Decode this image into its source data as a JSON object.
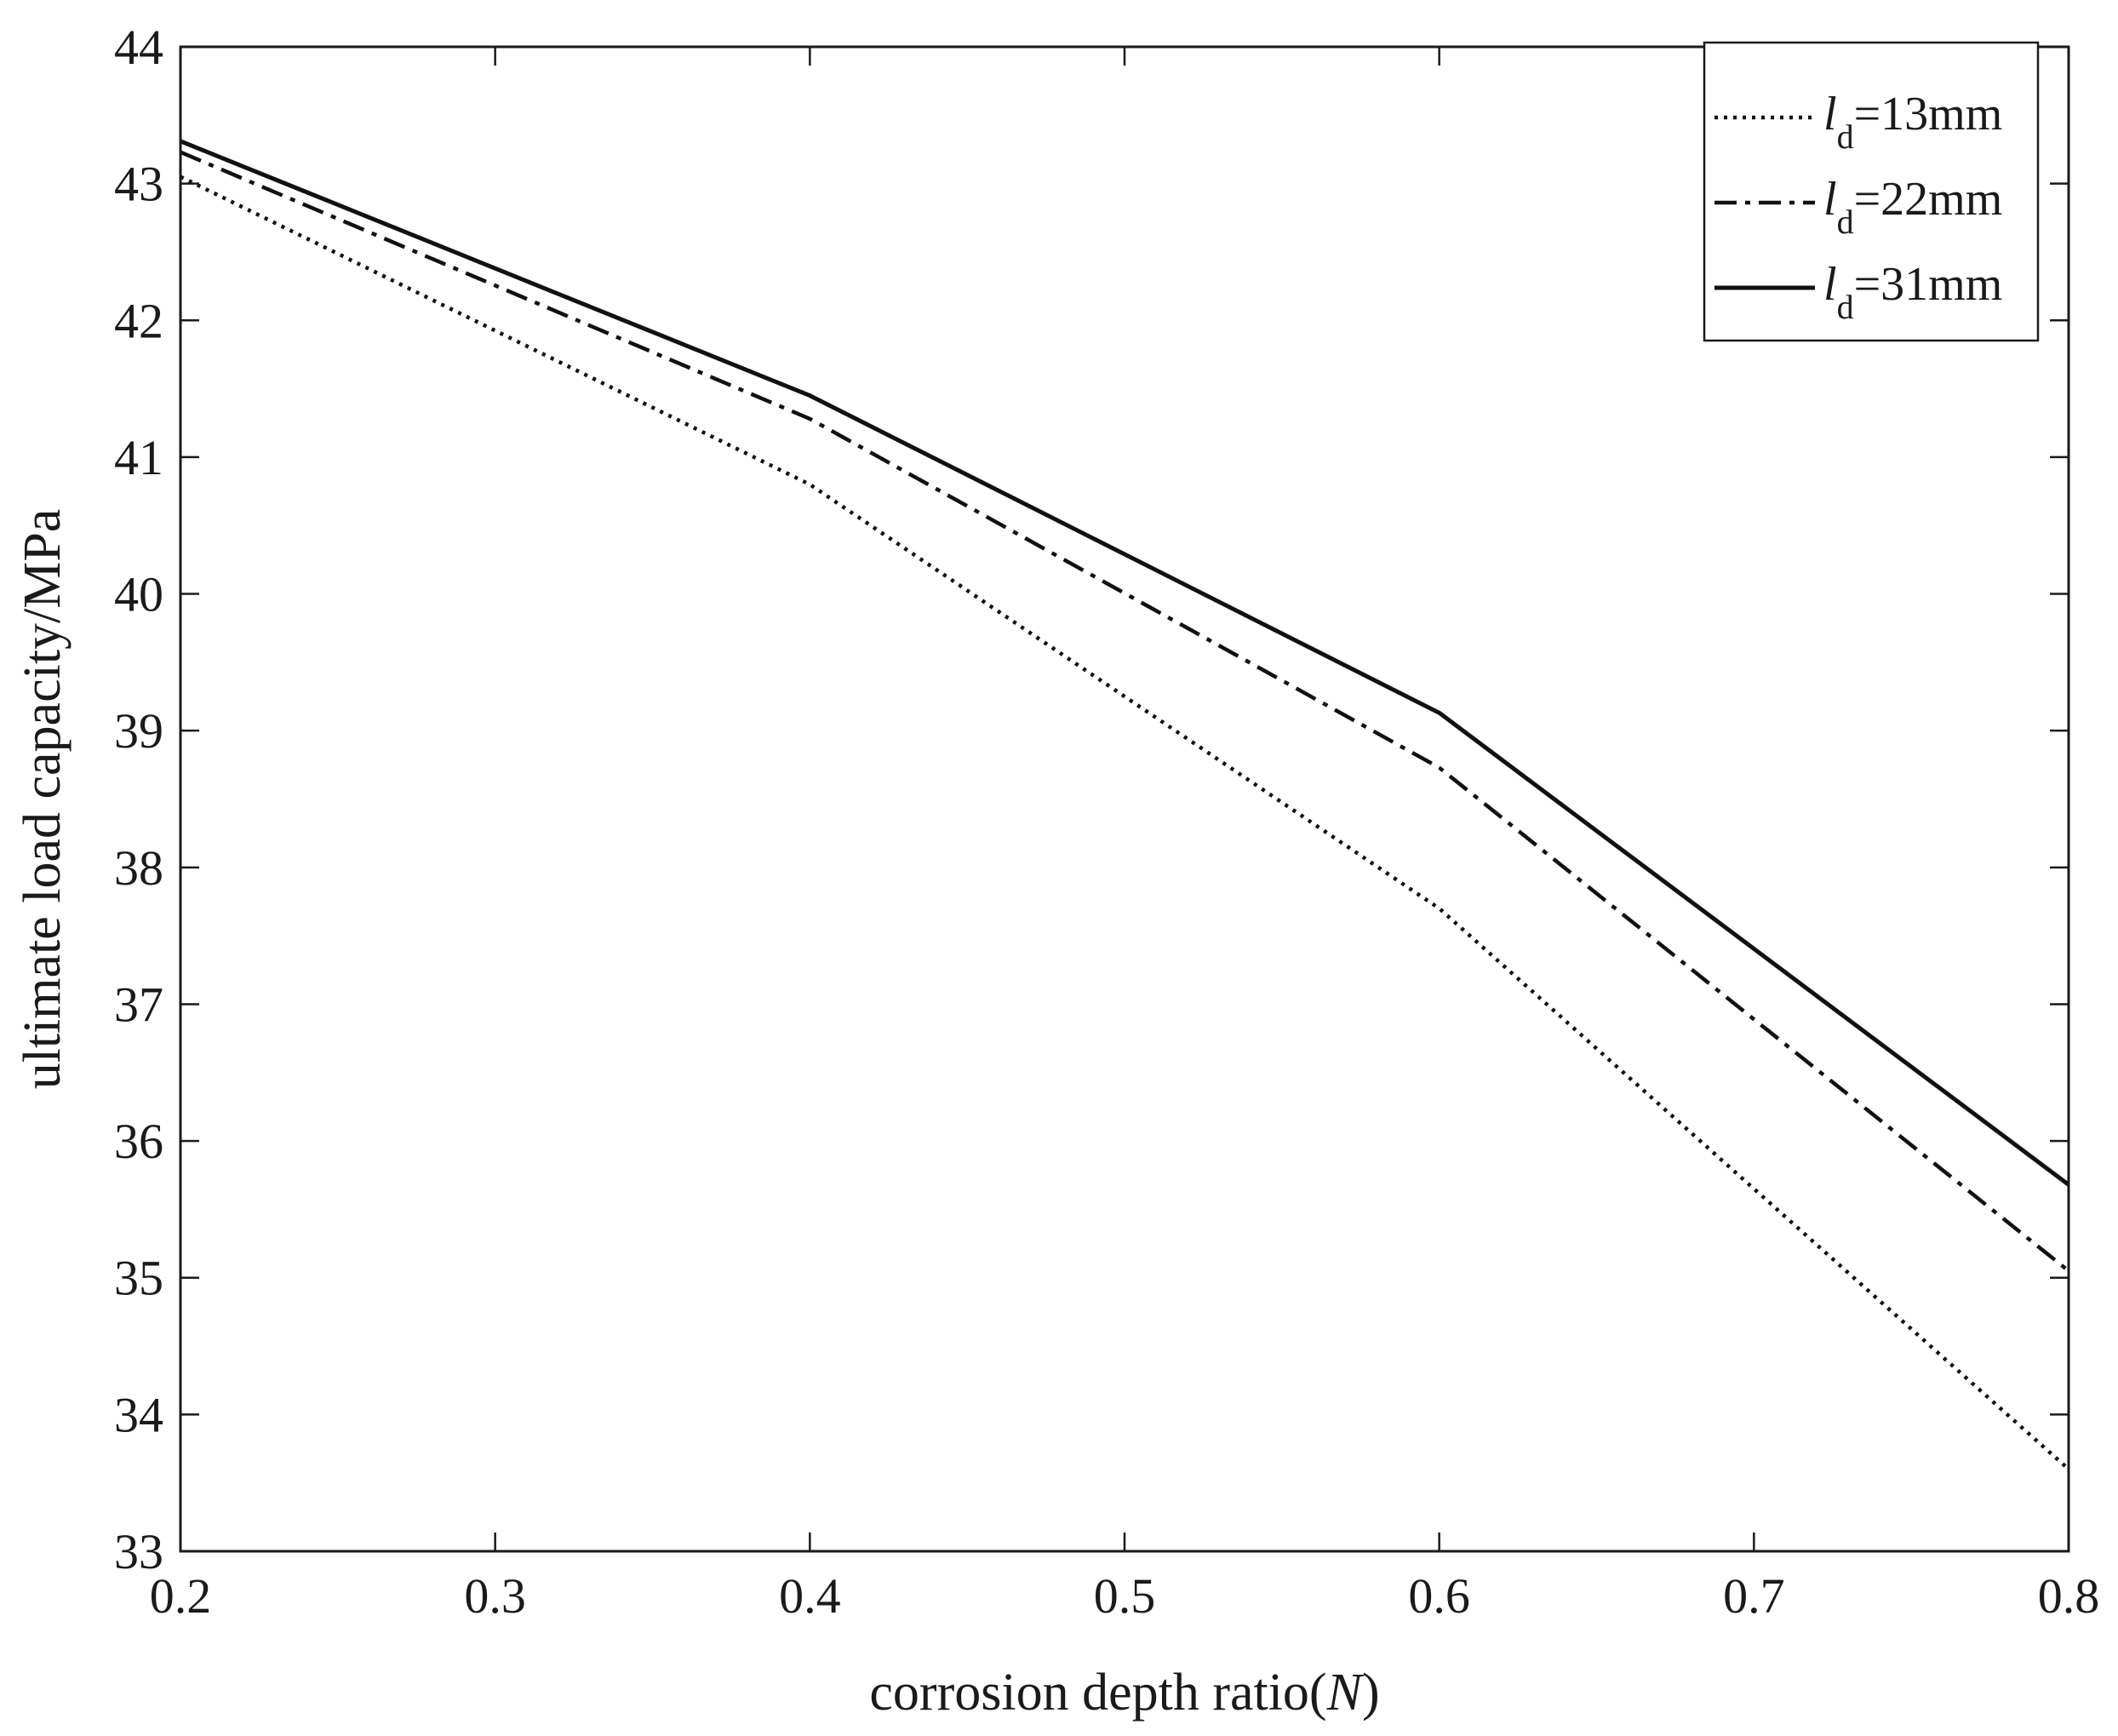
{
  "chart_data": {
    "type": "line",
    "xlabel_main": "corrosion depth ratio(",
    "xlabel_var": "N",
    "xlabel_end": ")",
    "ylabel": "ultimate load capacity/MPa",
    "xlim": [
      0.2,
      0.8
    ],
    "ylim": [
      33,
      44
    ],
    "x_ticks": [
      "0.2",
      "0.3",
      "0.4",
      "0.5",
      "0.6",
      "0.7",
      "0.8"
    ],
    "y_ticks": [
      "33",
      "34",
      "35",
      "36",
      "37",
      "38",
      "39",
      "40",
      "41",
      "42",
      "43",
      "44"
    ],
    "grid": false,
    "legend_position": "top-right",
    "x": [
      0.2,
      0.4,
      0.6,
      0.8
    ],
    "series": [
      {
        "name_var": "l",
        "name_sub": "d",
        "name_rest": "=13mm",
        "style": "dotted",
        "values": [
          43.05,
          40.8,
          37.7,
          33.6
        ]
      },
      {
        "name_var": "l",
        "name_sub": "d",
        "name_rest": "=22mm",
        "style": "dashdot",
        "values": [
          43.23,
          41.28,
          38.73,
          35.05
        ]
      },
      {
        "name_var": "l",
        "name_sub": "d",
        "name_rest": "=31mm",
        "style": "solid",
        "values": [
          43.31,
          41.45,
          39.13,
          35.68
        ]
      }
    ],
    "colors": {
      "line": "#111111",
      "axis": "#1a1a1a",
      "background": "#ffffff"
    }
  }
}
